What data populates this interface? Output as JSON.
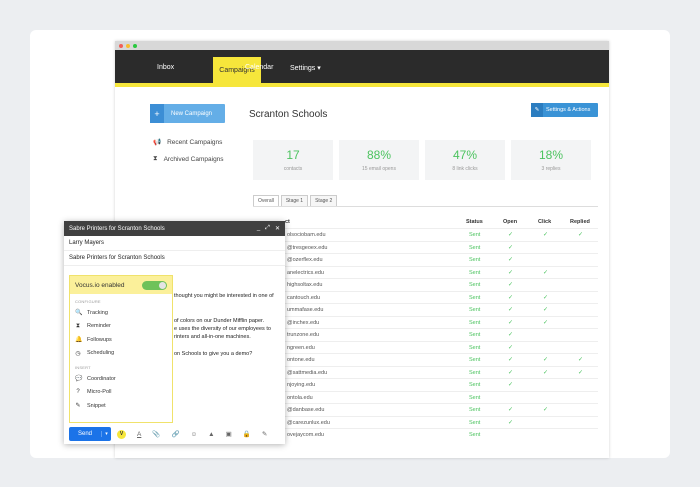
{
  "nav": {
    "inbox": "Inbox",
    "campaigns": "Campaigns",
    "calendar": "Calendar",
    "settings": "Settings ▾"
  },
  "sidebar": {
    "new_campaign": "New Campaign",
    "recent": "Recent Campaigns",
    "archived": "Archived Campaigns"
  },
  "page": {
    "title": "Scranton Schools",
    "settings_actions": "Settings & Actions"
  },
  "stats": [
    {
      "value": "17",
      "label": "contacts"
    },
    {
      "value": "88%",
      "label": "15 email opens"
    },
    {
      "value": "47%",
      "label": "8 link clicks"
    },
    {
      "value": "18%",
      "label": "3 replies"
    }
  ],
  "tabs": [
    "Overall",
    "Stage 1",
    "Stage 2"
  ],
  "table": {
    "headers": {
      "contact": "ct",
      "status": "Status",
      "open": "Open",
      "click": "Click",
      "replied": "Replied"
    },
    "rows": [
      {
        "email": "olsociobam.edu",
        "status": "Sent",
        "open": true,
        "click": true,
        "replied": true
      },
      {
        "email": "@tresgeoex.edu",
        "status": "Sent",
        "open": true,
        "click": false,
        "replied": false
      },
      {
        "email": "@ozerflex.edu",
        "status": "Sent",
        "open": true,
        "click": false,
        "replied": false
      },
      {
        "email": "anelectrics.edu",
        "status": "Sent",
        "open": true,
        "click": true,
        "replied": false
      },
      {
        "email": "highsoltax.edu",
        "status": "Sent",
        "open": true,
        "click": false,
        "replied": false
      },
      {
        "email": "cantouch.edu",
        "status": "Sent",
        "open": true,
        "click": true,
        "replied": false
      },
      {
        "email": "ummafase.edu",
        "status": "Sent",
        "open": true,
        "click": true,
        "replied": false
      },
      {
        "email": "@inchex.edu",
        "status": "Sent",
        "open": true,
        "click": true,
        "replied": false
      },
      {
        "email": "trunzone.edu",
        "status": "Sent",
        "open": true,
        "click": false,
        "replied": false
      },
      {
        "email": "ngreen.edu",
        "status": "Sent",
        "open": true,
        "click": false,
        "replied": false
      },
      {
        "email": "ontone.edu",
        "status": "Sent",
        "open": true,
        "click": true,
        "replied": true
      },
      {
        "email": "@sattmedia.edu",
        "status": "Sent",
        "open": true,
        "click": true,
        "replied": true
      },
      {
        "email": "njoying.edu",
        "status": "Sent",
        "open": true,
        "click": false,
        "replied": false
      },
      {
        "email": "ontola.edu",
        "status": "Sent",
        "open": false,
        "click": false,
        "replied": false
      },
      {
        "email": "@danbase.edu",
        "status": "Sent",
        "open": true,
        "click": true,
        "replied": false
      },
      {
        "email": "@carezunlux.edu",
        "status": "Sent",
        "open": true,
        "click": false,
        "replied": false
      },
      {
        "email": "ovejaycom.edu",
        "status": "Sent",
        "open": false,
        "click": false,
        "replied": false
      }
    ]
  },
  "compose": {
    "title": "Sabre Printers for Scranton Schools",
    "to": "Larry Mayers",
    "subject": "Sabre Printers for Scranton Schools",
    "body": [
      "thought you might be interested in one of",
      "",
      "of colors on our Dunder Mifflin paper.",
      "e uses the diversity of our employees to",
      "rinters and all-in-one machines.",
      "",
      "on Schools to give you a demo?"
    ],
    "send": "Send",
    "vocus": {
      "enabled": "Vocus.io enabled",
      "configure": "CONFIGURE",
      "insert": "INSERT",
      "config_items": [
        {
          "icon": "search-icon",
          "label": "Tracking"
        },
        {
          "icon": "hourglass-icon",
          "label": "Reminder"
        },
        {
          "icon": "bell-icon",
          "label": "Followups"
        },
        {
          "icon": "clock-icon",
          "label": "Scheduling"
        }
      ],
      "insert_items": [
        {
          "icon": "chat-icon",
          "label": "Coordinator"
        },
        {
          "icon": "question-icon",
          "label": "Micro-Poll"
        },
        {
          "icon": "pencil-icon",
          "label": "Snippet"
        }
      ]
    }
  },
  "colors": {
    "accent": "#f6e63b",
    "primary": "#3a93d6",
    "success": "#4cc35f",
    "navbar": "#2b2b2b"
  }
}
